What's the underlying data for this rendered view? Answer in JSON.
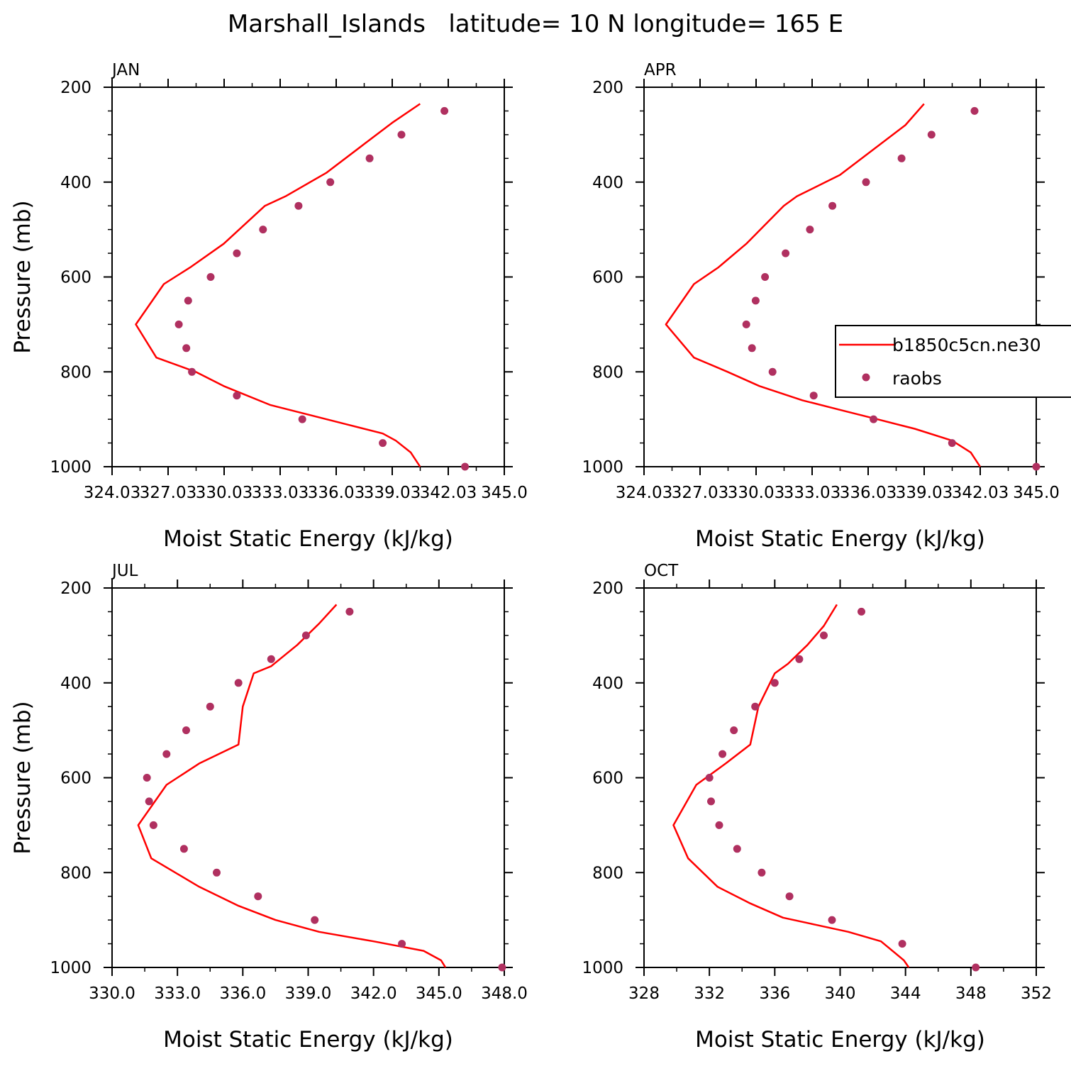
{
  "title": "Marshall_Islands   latitude= 10 N longitude= 165 E",
  "legend": {
    "model_label": "b1850c5cn.ne30",
    "obs_label": "raobs",
    "placement": "right, inside APR panel"
  },
  "colors": {
    "model": "#ff0000",
    "obs": "#b03060"
  },
  "chart_data": [
    {
      "type": "line",
      "panel": "JAN",
      "xlabel": "Moist Static Energy (kJ/kg)",
      "ylabel": "Pressure (mb)",
      "xlim": [
        324.03,
        345.0
      ],
      "ylim": [
        1000,
        200
      ],
      "xticks": [
        "324.03",
        "327.03",
        "330.03",
        "333.03",
        "336.03",
        "339.03",
        "342.03",
        "345.0"
      ],
      "yticks": [
        200,
        400,
        600,
        800,
        1000
      ],
      "series": [
        {
          "name": "b1850c5cn.ne30",
          "kind": "line",
          "x": [
            340.5,
            339.0,
            337.5,
            335.5,
            333.3,
            332.2,
            330.0,
            328.2,
            326.8,
            325.3,
            326.4,
            328.5,
            330.0,
            332.5,
            334.5,
            336.5,
            338.5,
            339.2,
            340.0,
            340.5
          ],
          "y": [
            235,
            275,
            320,
            380,
            430,
            450,
            530,
            580,
            615,
            700,
            770,
            800,
            830,
            870,
            890,
            910,
            930,
            945,
            970,
            1000
          ]
        },
        {
          "name": "raobs",
          "kind": "scatter",
          "x": [
            341.8,
            339.5,
            337.8,
            335.7,
            334.0,
            332.1,
            330.7,
            329.3,
            328.1,
            327.6,
            328.0,
            328.3,
            330.7,
            334.2,
            338.5,
            342.9
          ],
          "y": [
            250,
            300,
            350,
            400,
            450,
            500,
            550,
            600,
            650,
            700,
            750,
            800,
            850,
            900,
            950,
            1000
          ]
        }
      ]
    },
    {
      "type": "line",
      "panel": "APR",
      "xlabel": "Moist Static Energy (kJ/kg)",
      "ylabel": "",
      "xlim": [
        324.03,
        345.0
      ],
      "ylim": [
        1000,
        200
      ],
      "xticks": [
        "324.03",
        "327.03",
        "330.03",
        "333.03",
        "336.03",
        "339.03",
        "342.03",
        "345.0"
      ],
      "yticks": [
        200,
        400,
        600,
        800,
        1000
      ],
      "series": [
        {
          "name": "b1850c5cn.ne30",
          "kind": "line",
          "x": [
            339.0,
            338.0,
            336.5,
            334.5,
            332.2,
            331.5,
            329.5,
            328.0,
            326.7,
            325.2,
            326.7,
            328.5,
            330.2,
            332.5,
            334.5,
            336.5,
            338.5,
            340.5,
            341.5,
            342.0
          ],
          "y": [
            235,
            280,
            325,
            385,
            430,
            450,
            530,
            580,
            615,
            700,
            770,
            800,
            830,
            860,
            880,
            900,
            920,
            945,
            970,
            1000
          ]
        },
        {
          "name": "raobs",
          "kind": "scatter",
          "x": [
            341.7,
            339.4,
            337.8,
            335.9,
            334.1,
            332.9,
            331.6,
            330.5,
            330.0,
            329.5,
            329.8,
            330.9,
            333.1,
            336.3,
            340.5,
            345.0
          ],
          "y": [
            250,
            300,
            350,
            400,
            450,
            500,
            550,
            600,
            650,
            700,
            750,
            800,
            850,
            900,
            950,
            1000
          ]
        }
      ]
    },
    {
      "type": "line",
      "panel": "JUL",
      "xlabel": "Moist Static Energy (kJ/kg)",
      "ylabel": "Pressure (mb)",
      "xlim": [
        330.0,
        348.0
      ],
      "ylim": [
        1000,
        200
      ],
      "xticks": [
        "330.0",
        "333.0",
        "336.0",
        "339.0",
        "342.0",
        "345.0",
        "348.0"
      ],
      "yticks": [
        200,
        400,
        600,
        800,
        1000
      ],
      "series": [
        {
          "name": "b1850c5cn.ne30",
          "kind": "line",
          "x": [
            340.3,
            339.5,
            338.5,
            337.3,
            336.5,
            336.0,
            335.8,
            334.0,
            332.5,
            331.2,
            331.8,
            334.0,
            335.8,
            337.5,
            339.5,
            342.0,
            344.3,
            345.1,
            345.3
          ],
          "y": [
            235,
            275,
            320,
            365,
            380,
            450,
            530,
            570,
            615,
            700,
            770,
            830,
            870,
            900,
            925,
            945,
            965,
            985,
            1000
          ]
        },
        {
          "name": "raobs",
          "kind": "scatter",
          "x": [
            340.9,
            338.9,
            337.3,
            335.8,
            334.5,
            333.4,
            332.5,
            331.6,
            331.7,
            331.9,
            333.3,
            334.8,
            336.7,
            339.3,
            343.3,
            347.9
          ],
          "y": [
            250,
            300,
            350,
            400,
            450,
            500,
            550,
            600,
            650,
            700,
            750,
            800,
            850,
            900,
            950,
            1000
          ]
        }
      ]
    },
    {
      "type": "line",
      "panel": "OCT",
      "xlabel": "Moist Static Energy (kJ/kg)",
      "ylabel": "",
      "xlim": [
        328,
        352
      ],
      "ylim": [
        1000,
        200
      ],
      "xticks": [
        "328",
        "332",
        "336",
        "340",
        "344",
        "348",
        "352"
      ],
      "yticks": [
        200,
        400,
        600,
        800,
        1000
      ],
      "series": [
        {
          "name": "b1850c5cn.ne30",
          "kind": "line",
          "x": [
            339.8,
            339.0,
            338.0,
            336.8,
            336.0,
            335.0,
            334.5,
            333.0,
            331.2,
            329.8,
            330.7,
            332.5,
            334.5,
            336.5,
            338.5,
            340.5,
            342.5,
            343.9,
            344.2
          ],
          "y": [
            235,
            280,
            320,
            360,
            380,
            450,
            530,
            570,
            615,
            700,
            770,
            830,
            865,
            895,
            910,
            925,
            945,
            985,
            1000
          ]
        },
        {
          "name": "raobs",
          "kind": "scatter",
          "x": [
            341.3,
            339.0,
            337.5,
            336.0,
            334.8,
            333.5,
            332.8,
            332.0,
            332.1,
            332.6,
            333.7,
            335.2,
            336.9,
            339.5,
            343.8,
            348.3
          ],
          "y": [
            250,
            300,
            350,
            400,
            450,
            500,
            550,
            600,
            650,
            700,
            750,
            800,
            850,
            900,
            950,
            1000
          ]
        }
      ]
    }
  ]
}
